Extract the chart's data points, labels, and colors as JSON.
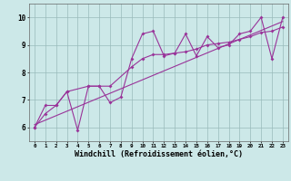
{
  "background_color": "#cce8e8",
  "line_color": "#993399",
  "grid_color": "#99bbbb",
  "x_ticks": [
    0,
    1,
    2,
    3,
    4,
    5,
    6,
    7,
    8,
    9,
    10,
    11,
    12,
    13,
    14,
    15,
    16,
    17,
    18,
    19,
    20,
    21,
    22,
    23
  ],
  "y_ticks": [
    6,
    7,
    8,
    9,
    10
  ],
  "xlim": [
    -0.5,
    23.5
  ],
  "ylim": [
    5.5,
    10.5
  ],
  "xlabel": "Windchill (Refroidissement éolien,°C)",
  "xlabel_fontsize": 6.0,
  "series1": {
    "x": [
      0,
      1,
      2,
      3,
      4,
      5,
      6,
      7,
      8,
      9,
      10,
      11,
      12,
      13,
      14,
      15,
      16,
      17,
      18,
      19,
      20,
      21,
      22,
      23
    ],
    "y": [
      6.0,
      6.8,
      6.8,
      7.3,
      5.9,
      7.5,
      7.5,
      6.9,
      7.1,
      8.5,
      9.4,
      9.5,
      8.6,
      8.7,
      9.4,
      8.6,
      9.3,
      8.9,
      9.0,
      9.4,
      9.5,
      10.0,
      8.5,
      10.0
    ]
  },
  "series2": {
    "x": [
      0,
      1,
      2,
      3,
      5,
      6,
      7,
      9,
      10,
      11,
      12,
      13,
      14,
      15,
      16,
      17,
      18,
      19,
      20,
      21,
      22,
      23
    ],
    "y": [
      6.0,
      6.5,
      6.8,
      7.3,
      7.5,
      7.5,
      7.5,
      8.2,
      8.5,
      8.65,
      8.65,
      8.7,
      8.75,
      8.85,
      9.0,
      9.05,
      9.1,
      9.2,
      9.3,
      9.45,
      9.5,
      9.65
    ]
  },
  "trend": {
    "x": [
      0,
      23
    ],
    "y": [
      6.1,
      9.85
    ]
  }
}
